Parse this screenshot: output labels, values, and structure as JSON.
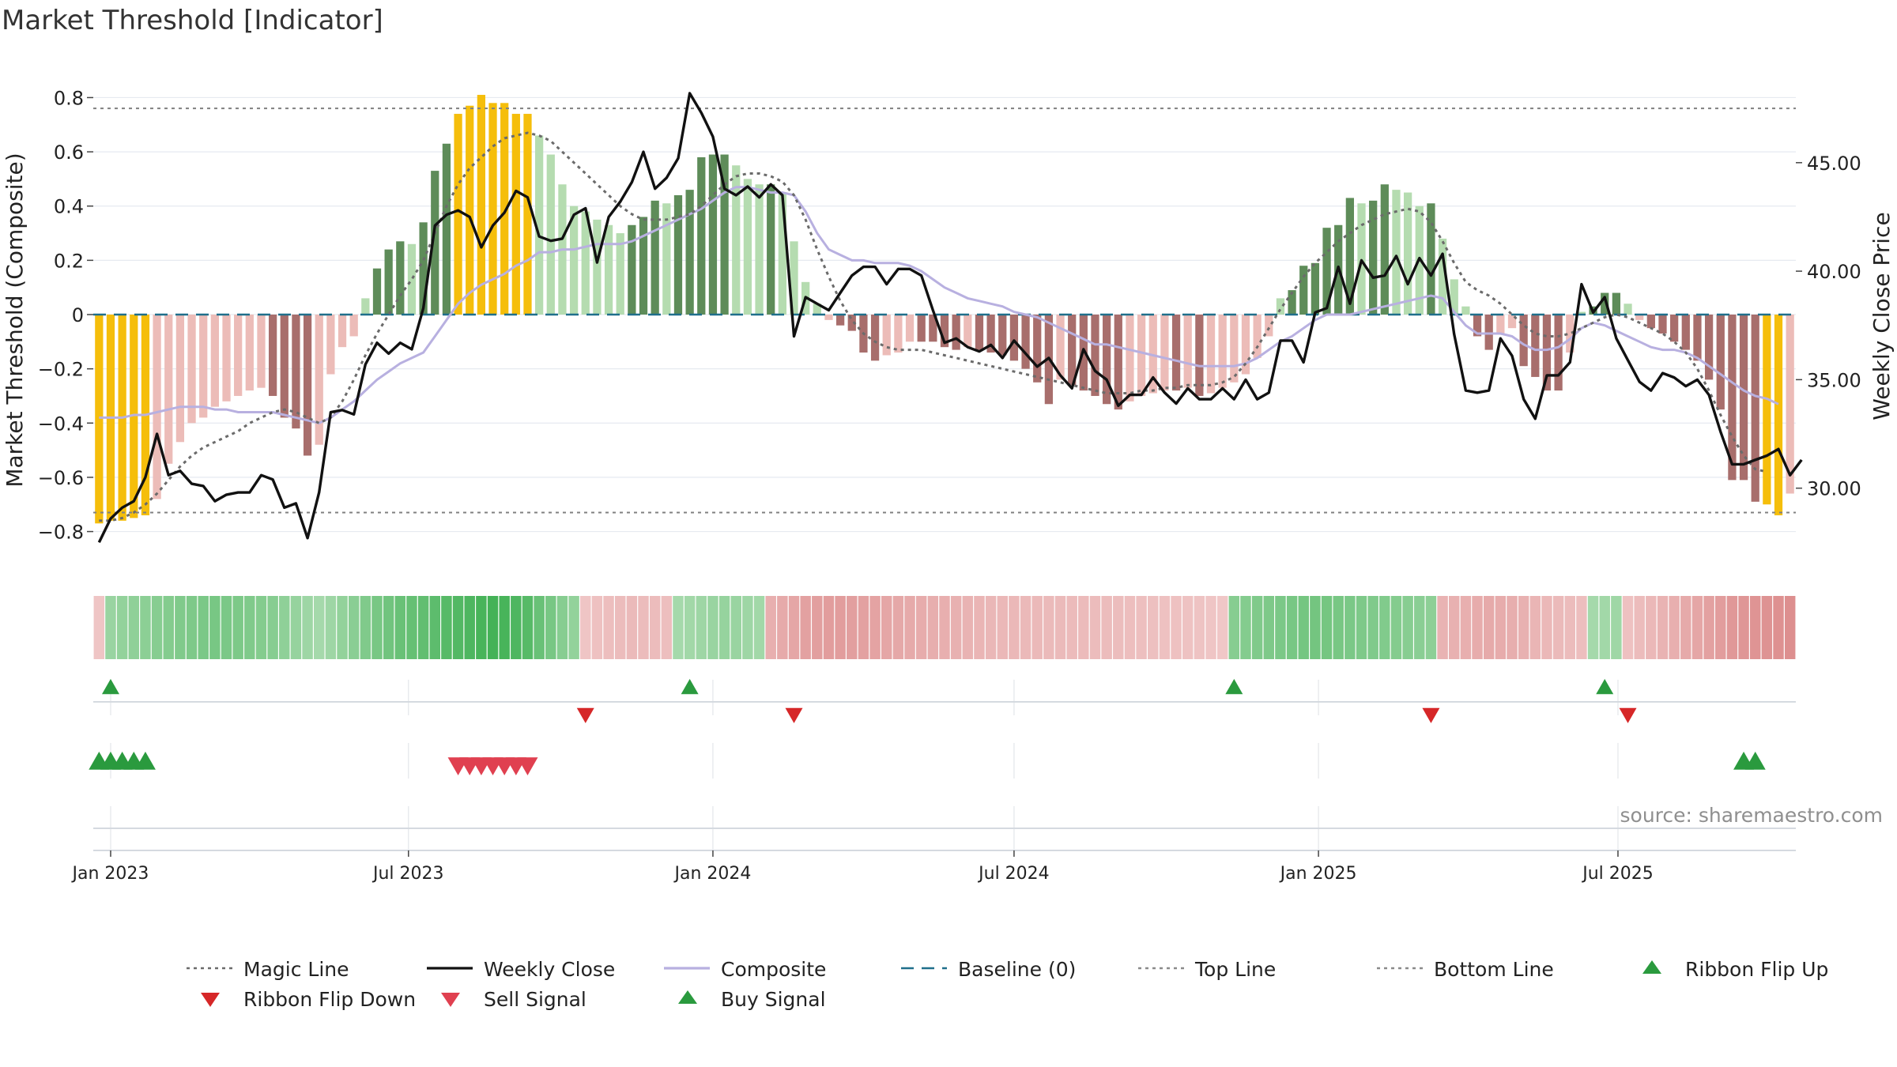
{
  "chart_data": {
    "type": "bar",
    "title": "Market Threshold [Indicator]",
    "ylabel_left": "Market Threshold (Composite)",
    "ylabel_right": "Weekly Close Price",
    "ylim_left": [
      -0.88,
      0.88
    ],
    "ylim_right": [
      27.0,
      49.0
    ],
    "yticks_left": [
      {
        "v": 0.8,
        "label": "0.8"
      },
      {
        "v": 0.6,
        "label": "0.6"
      },
      {
        "v": 0.4,
        "label": "0.4"
      },
      {
        "v": 0.2,
        "label": "0.2"
      },
      {
        "v": 0,
        "label": "0"
      },
      {
        "v": -0.2,
        "label": "−0.2"
      },
      {
        "v": -0.4,
        "label": "−0.4"
      },
      {
        "v": -0.6,
        "label": "−0.6"
      },
      {
        "v": -0.8,
        "label": "−0.8"
      }
    ],
    "yticks_right": [
      {
        "v": 45,
        "label": "45.00"
      },
      {
        "v": 40,
        "label": "40.00"
      },
      {
        "v": 35,
        "label": "35.00"
      },
      {
        "v": 30,
        "label": "30.00"
      }
    ],
    "x_range": [
      "2022-12-26",
      "2025-10-06"
    ],
    "x_ticks": [
      {
        "date": "2023-01-02",
        "label": "Jan 2023"
      },
      {
        "date": "2023-07-01",
        "label": "Jul 2023"
      },
      {
        "date": "2024-01-01",
        "label": "Jan 2024"
      },
      {
        "date": "2024-07-01",
        "label": "Jul 2024"
      },
      {
        "date": "2025-01-01",
        "label": "Jan 2025"
      },
      {
        "date": "2025-07-01",
        "label": "Jul 2025"
      }
    ],
    "top_line": 0.76,
    "bottom_line": -0.73,
    "baseline": 0,
    "bars": [
      -0.77,
      -0.76,
      -0.76,
      -0.75,
      -0.74,
      -0.68,
      -0.55,
      -0.47,
      -0.4,
      -0.38,
      -0.34,
      -0.32,
      -0.3,
      -0.28,
      -0.27,
      -0.3,
      -0.38,
      -0.42,
      -0.52,
      -0.48,
      -0.22,
      -0.12,
      -0.08,
      0.06,
      0.17,
      0.24,
      0.27,
      0.26,
      0.34,
      0.53,
      0.63,
      0.74,
      0.77,
      0.81,
      0.78,
      0.78,
      0.74,
      0.74,
      0.66,
      0.59,
      0.48,
      0.4,
      0.38,
      0.35,
      0.33,
      0.3,
      0.33,
      0.36,
      0.42,
      0.41,
      0.44,
      0.46,
      0.58,
      0.59,
      0.59,
      0.55,
      0.5,
      0.48,
      0.48,
      0.45,
      0.27,
      0.12,
      0.04,
      -0.02,
      -0.04,
      -0.06,
      -0.14,
      -0.17,
      -0.15,
      -0.14,
      -0.1,
      -0.1,
      -0.1,
      -0.12,
      -0.13,
      -0.12,
      -0.13,
      -0.14,
      -0.15,
      -0.17,
      -0.2,
      -0.25,
      -0.33,
      -0.24,
      -0.26,
      -0.28,
      -0.3,
      -0.33,
      -0.35,
      -0.32,
      -0.3,
      -0.29,
      -0.28,
      -0.28,
      -0.27,
      -0.3,
      -0.29,
      -0.27,
      -0.25,
      -0.22,
      -0.16,
      -0.08,
      0.06,
      0.09,
      0.18,
      0.19,
      0.32,
      0.33,
      0.43,
      0.41,
      0.42,
      0.48,
      0.46,
      0.45,
      0.4,
      0.41,
      0.28,
      0.13,
      0.03,
      -0.08,
      -0.13,
      -0.07,
      -0.05,
      -0.19,
      -0.23,
      -0.28,
      -0.28,
      -0.14,
      0.01,
      0.03,
      0.08,
      0.08,
      0.04,
      -0.02,
      -0.05,
      -0.07,
      -0.1,
      -0.13,
      -0.17,
      -0.24,
      -0.35,
      -0.61,
      -0.61,
      -0.69,
      -0.7,
      -0.74,
      -0.66
    ],
    "magic_line": [
      -0.76,
      -0.76,
      -0.75,
      -0.73,
      -0.7,
      -0.66,
      -0.61,
      -0.56,
      -0.52,
      -0.49,
      -0.47,
      -0.45,
      -0.43,
      -0.4,
      -0.38,
      -0.36,
      -0.35,
      -0.36,
      -0.38,
      -0.4,
      -0.38,
      -0.32,
      -0.24,
      -0.15,
      -0.07,
      0.0,
      0.07,
      0.13,
      0.2,
      0.3,
      0.4,
      0.48,
      0.54,
      0.58,
      0.62,
      0.65,
      0.66,
      0.67,
      0.66,
      0.64,
      0.6,
      0.56,
      0.52,
      0.48,
      0.44,
      0.4,
      0.37,
      0.35,
      0.35,
      0.35,
      0.36,
      0.37,
      0.4,
      0.44,
      0.48,
      0.51,
      0.52,
      0.52,
      0.51,
      0.49,
      0.44,
      0.35,
      0.24,
      0.14,
      0.05,
      -0.02,
      -0.07,
      -0.1,
      -0.12,
      -0.13,
      -0.13,
      -0.13,
      -0.14,
      -0.15,
      -0.16,
      -0.17,
      -0.18,
      -0.19,
      -0.2,
      -0.21,
      -0.22,
      -0.23,
      -0.24,
      -0.25,
      -0.26,
      -0.27,
      -0.28,
      -0.29,
      -0.29,
      -0.29,
      -0.28,
      -0.28,
      -0.27,
      -0.27,
      -0.26,
      -0.26,
      -0.26,
      -0.25,
      -0.23,
      -0.18,
      -0.12,
      -0.05,
      0.02,
      0.08,
      0.14,
      0.19,
      0.23,
      0.27,
      0.3,
      0.33,
      0.35,
      0.37,
      0.38,
      0.39,
      0.38,
      0.34,
      0.27,
      0.19,
      0.12,
      0.09,
      0.07,
      0.04,
      0.0,
      -0.04,
      -0.07,
      -0.08,
      -0.08,
      -0.07,
      -0.05,
      -0.03,
      -0.01,
      0.0,
      -0.01,
      -0.03,
      -0.05,
      -0.07,
      -0.1,
      -0.14,
      -0.2,
      -0.28,
      -0.37,
      -0.45,
      -0.52,
      -0.57,
      -0.58
    ],
    "composite": [
      -0.38,
      -0.38,
      -0.38,
      -0.37,
      -0.37,
      -0.36,
      -0.35,
      -0.34,
      -0.34,
      -0.34,
      -0.35,
      -0.35,
      -0.36,
      -0.36,
      -0.36,
      -0.36,
      -0.37,
      -0.38,
      -0.39,
      -0.4,
      -0.38,
      -0.35,
      -0.32,
      -0.28,
      -0.24,
      -0.21,
      -0.18,
      -0.16,
      -0.14,
      -0.08,
      -0.02,
      0.04,
      0.08,
      0.11,
      0.13,
      0.15,
      0.18,
      0.2,
      0.23,
      0.23,
      0.24,
      0.24,
      0.25,
      0.26,
      0.26,
      0.26,
      0.27,
      0.29,
      0.31,
      0.33,
      0.35,
      0.37,
      0.39,
      0.42,
      0.45,
      0.47,
      0.47,
      0.46,
      0.45,
      0.45,
      0.44,
      0.38,
      0.3,
      0.24,
      0.22,
      0.2,
      0.2,
      0.19,
      0.19,
      0.19,
      0.18,
      0.16,
      0.13,
      0.1,
      0.08,
      0.06,
      0.05,
      0.04,
      0.03,
      0.01,
      0.0,
      -0.01,
      -0.03,
      -0.05,
      -0.07,
      -0.09,
      -0.11,
      -0.11,
      -0.12,
      -0.13,
      -0.14,
      -0.15,
      -0.16,
      -0.17,
      -0.18,
      -0.19,
      -0.19,
      -0.19,
      -0.19,
      -0.18,
      -0.16,
      -0.13,
      -0.1,
      -0.08,
      -0.05,
      -0.02,
      0.0,
      0.0,
      0.0,
      0.01,
      0.02,
      0.03,
      0.04,
      0.05,
      0.06,
      0.07,
      0.06,
      0.01,
      -0.04,
      -0.07,
      -0.07,
      -0.07,
      -0.08,
      -0.11,
      -0.13,
      -0.13,
      -0.12,
      -0.09,
      -0.05,
      -0.03,
      -0.04,
      -0.06,
      -0.08,
      -0.1,
      -0.12,
      -0.13,
      -0.13,
      -0.14,
      -0.16,
      -0.19,
      -0.22,
      -0.25,
      -0.28,
      -0.3,
      -0.31,
      -0.33
    ],
    "weekly_close": [
      27.5,
      28.6,
      29.1,
      29.4,
      30.5,
      32.5,
      30.6,
      30.8,
      30.2,
      30.1,
      29.4,
      29.7,
      29.8,
      29.8,
      30.6,
      30.4,
      29.1,
      29.3,
      27.7,
      29.8,
      33.5,
      33.6,
      33.4,
      35.7,
      36.7,
      36.2,
      36.7,
      36.4,
      38.3,
      42.1,
      42.6,
      42.8,
      42.5,
      41.1,
      42.1,
      42.7,
      43.7,
      43.4,
      41.6,
      41.4,
      41.5,
      42.6,
      42.9,
      40.4,
      42.5,
      43.2,
      44.1,
      45.5,
      43.8,
      44.3,
      45.2,
      48.2,
      47.3,
      46.2,
      43.8,
      43.5,
      43.9,
      43.4,
      44.0,
      43.5,
      37.0,
      38.8,
      38.5,
      38.2,
      39.0,
      39.8,
      40.2,
      40.2,
      39.4,
      40.1,
      40.1,
      39.8,
      38.2,
      36.7,
      36.9,
      36.5,
      36.3,
      36.6,
      36.0,
      36.8,
      36.2,
      35.6,
      36.0,
      35.2,
      34.6,
      36.4,
      35.4,
      35.0,
      33.8,
      34.3,
      34.3,
      35.1,
      34.4,
      33.9,
      34.6,
      34.1,
      34.1,
      34.6,
      34.1,
      35.0,
      34.1,
      34.4,
      36.8,
      36.8,
      35.8,
      38.1,
      38.3,
      40.2,
      38.5,
      40.5,
      39.7,
      39.8,
      40.7,
      39.4,
      40.6,
      39.8,
      40.8,
      37.1,
      34.5,
      34.4,
      34.5,
      36.9,
      36.1,
      34.1,
      33.2,
      35.2,
      35.2,
      35.8,
      39.4,
      38.1,
      38.8,
      36.9,
      35.9,
      34.9,
      34.5,
      35.3,
      35.1,
      34.7,
      35.0,
      34.3,
      32.6,
      31.1,
      31.1,
      31.3,
      31.5,
      31.8,
      30.6,
      31.3
    ],
    "ribbon": [
      -0.2,
      0.38,
      0.42,
      0.45,
      0.47,
      0.5,
      0.52,
      0.55,
      0.56,
      0.58,
      0.6,
      0.58,
      0.57,
      0.55,
      0.52,
      0.5,
      0.45,
      0.4,
      0.35,
      0.3,
      0.35,
      0.42,
      0.48,
      0.55,
      0.6,
      0.65,
      0.7,
      0.72,
      0.75,
      0.78,
      0.82,
      0.85,
      0.88,
      0.92,
      0.95,
      0.92,
      0.88,
      0.82,
      0.7,
      0.6,
      0.5,
      0.42,
      -0.2,
      -0.25,
      -0.28,
      -0.3,
      -0.32,
      -0.3,
      -0.3,
      -0.28,
      0.3,
      0.32,
      0.35,
      0.38,
      0.4,
      0.38,
      0.35,
      0.32,
      -0.45,
      -0.5,
      -0.55,
      -0.6,
      -0.62,
      -0.65,
      -0.65,
      -0.62,
      -0.6,
      -0.58,
      -0.55,
      -0.52,
      -0.5,
      -0.48,
      -0.46,
      -0.44,
      -0.42,
      -0.4,
      -0.38,
      -0.36,
      -0.35,
      -0.34,
      -0.33,
      -0.33,
      -0.32,
      -0.32,
      -0.31,
      -0.31,
      -0.3,
      -0.3,
      -0.29,
      -0.28,
      -0.27,
      -0.26,
      -0.25,
      -0.24,
      -0.23,
      -0.22,
      -0.2,
      -0.18,
      0.5,
      0.52,
      0.55,
      0.56,
      0.58,
      0.6,
      0.62,
      0.63,
      0.62,
      0.6,
      0.58,
      0.56,
      0.55,
      0.54,
      0.52,
      0.5,
      0.48,
      0.46,
      -0.4,
      -0.42,
      -0.45,
      -0.48,
      -0.5,
      -0.48,
      -0.46,
      -0.42,
      -0.38,
      -0.35,
      -0.32,
      -0.3,
      -0.28,
      0.3,
      0.32,
      0.34,
      -0.25,
      -0.3,
      -0.35,
      -0.4,
      -0.45,
      -0.5,
      -0.55,
      -0.6,
      -0.65,
      -0.7,
      -0.72,
      -0.74,
      -0.76,
      -0.78,
      -0.8
    ],
    "ribbon_flip_up_weeks": [
      1,
      51,
      98,
      130
    ],
    "ribbon_flip_down_weeks": [
      42,
      60,
      115,
      132
    ],
    "buy_signal_weeks": [
      0,
      1,
      2,
      3,
      4,
      142,
      143
    ],
    "sell_signal_weeks": [
      31,
      32,
      33,
      34,
      35,
      36,
      37
    ],
    "legend": [
      {
        "label": "Magic Line",
        "kind": "dotted",
        "color": "#6b6b6b"
      },
      {
        "label": "Weekly Close",
        "kind": "solid",
        "color": "#111111"
      },
      {
        "label": "Composite",
        "kind": "solid",
        "color": "#b8b0e0"
      },
      {
        "label": "Baseline (0)",
        "kind": "dashed",
        "color": "#1f6f8b"
      },
      {
        "label": "Top Line",
        "kind": "dotted",
        "color": "#8a8a8a"
      },
      {
        "label": "Bottom Line",
        "kind": "dotted",
        "color": "#8a8a8a"
      },
      {
        "label": "Ribbon Flip Up",
        "kind": "tri-up",
        "color": "#2a9a3e"
      },
      {
        "label": "Ribbon Flip Down",
        "kind": "tri-down",
        "color": "#d62728"
      },
      {
        "label": "Sell Signal",
        "kind": "tri-down",
        "color": "#e04050"
      },
      {
        "label": "Buy Signal",
        "kind": "tri-up",
        "color": "#2a9a3e"
      }
    ],
    "source": "source: sharemaestro.com",
    "colors": {
      "extreme": "#f5be0b",
      "pos_strong": "#5e8c59",
      "pos_weak": "#b5dcb0",
      "neg_strong": "#a86e6c",
      "neg_weak": "#ecbcb8",
      "grid": "#e6eaf0"
    }
  }
}
